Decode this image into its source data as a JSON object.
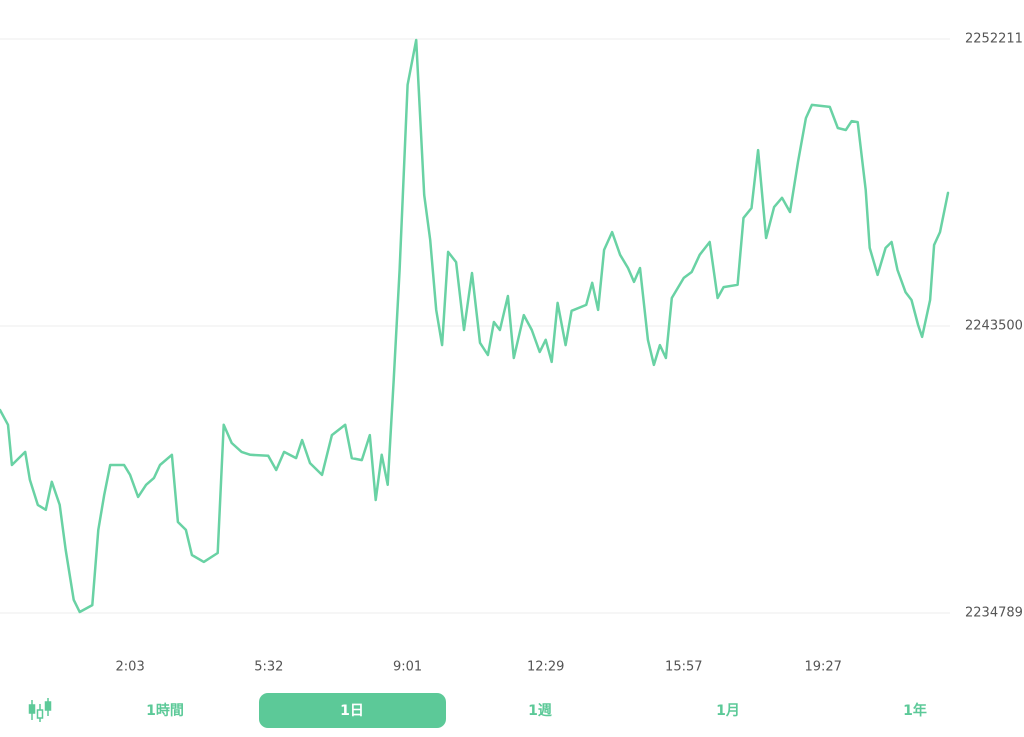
{
  "chart_data": {
    "type": "line",
    "color": "#69d2a4",
    "x": [
      -73,
      -61,
      -55,
      -35,
      -28,
      -16,
      -4,
      5,
      17,
      26,
      38,
      47,
      66,
      75,
      84,
      93,
      114,
      123,
      135,
      147,
      159,
      168,
      186,
      195,
      207,
      216,
      234,
      255,
      264,
      276,
      291,
      304,
      331,
      343,
      355,
      373,
      382,
      394,
      412,
      427,
      447,
      457,
      472,
      484,
      493,
      502,
      511,
      520,
      529,
      541,
      554,
      566,
      575,
      584,
      593,
      602,
      614,
      626,
      638,
      650,
      662,
      671,
      680,
      692,
      701,
      716,
      728,
      740,
      749,
      758,
      767,
      779,
      788,
      810,
      819,
      828,
      837,
      849,
      861,
      873,
      882,
      891,
      903,
      912,
      921,
      930,
      939,
      957,
      969,
      981,
      996,
      1008,
      1017,
      1038,
      1047,
      1059,
      1069,
      1081,
      1093,
      1105,
      1117,
      1129,
      1141,
      1150,
      1177,
      1189,
      1201,
      1210,
      1219,
      1231,
      1237,
      1249,
      1261,
      1270,
      1279,
      1291,
      1300,
      1310,
      1316,
      1328,
      1334,
      1343,
      1355
    ],
    "values": [
      2240950,
      2240500,
      2239280,
      2239680,
      2238830,
      2238070,
      2237920,
      2238770,
      2238070,
      2236700,
      2235190,
      2234820,
      2235030,
      2237310,
      2238370,
      2239280,
      2239280,
      2238980,
      2238310,
      2238680,
      2238890,
      2239280,
      2239590,
      2237550,
      2237310,
      2236550,
      2236340,
      2236610,
      2240500,
      2239950,
      2239680,
      2239590,
      2239560,
      2239130,
      2239680,
      2239490,
      2240040,
      2239340,
      2238980,
      2240190,
      2240500,
      2239490,
      2239430,
      2240190,
      2238220,
      2239590,
      2238680,
      2241860,
      2245200,
      2250820,
      2252180,
      2247480,
      2246110,
      2243990,
      2242920,
      2245750,
      2245440,
      2243380,
      2245110,
      2242990,
      2242620,
      2243620,
      2243380,
      2244410,
      2242530,
      2243830,
      2243380,
      2242710,
      2243080,
      2242410,
      2244200,
      2242920,
      2243960,
      2244140,
      2244810,
      2243990,
      2245810,
      2246350,
      2245660,
      2245260,
      2244840,
      2245260,
      2243080,
      2242320,
      2242920,
      2242530,
      2244350,
      2244960,
      2245140,
      2245660,
      2246050,
      2244350,
      2244680,
      2244750,
      2246780,
      2247080,
      2248840,
      2246170,
      2247110,
      2247390,
      2246960,
      2248480,
      2249810,
      2250210,
      2250150,
      2249510,
      2249450,
      2249720,
      2249690,
      2247630,
      2245870,
      2245050,
      2245870,
      2246050,
      2245200,
      2244530,
      2244290,
      2243530,
      2243170,
      2244290,
      2245960,
      2246350,
      2247540
    ],
    "xlim": [
      -73,
      1355
    ],
    "xticks": [
      {
        "value": 123,
        "label": "2:03"
      },
      {
        "value": 332,
        "label": "5:32"
      },
      {
        "value": 541,
        "label": "9:01"
      },
      {
        "value": 749,
        "label": "12:29"
      },
      {
        "value": 957,
        "label": "15:57"
      },
      {
        "value": 1167,
        "label": "19:27"
      }
    ],
    "ylim": [
      2234789,
      2252211
    ],
    "yticks": [
      2234789,
      2243500,
      2252211
    ],
    "grid": true
  },
  "toolbar": {
    "buttons": [
      "1時間",
      "1日",
      "1週",
      "1月",
      "1年"
    ]
  }
}
